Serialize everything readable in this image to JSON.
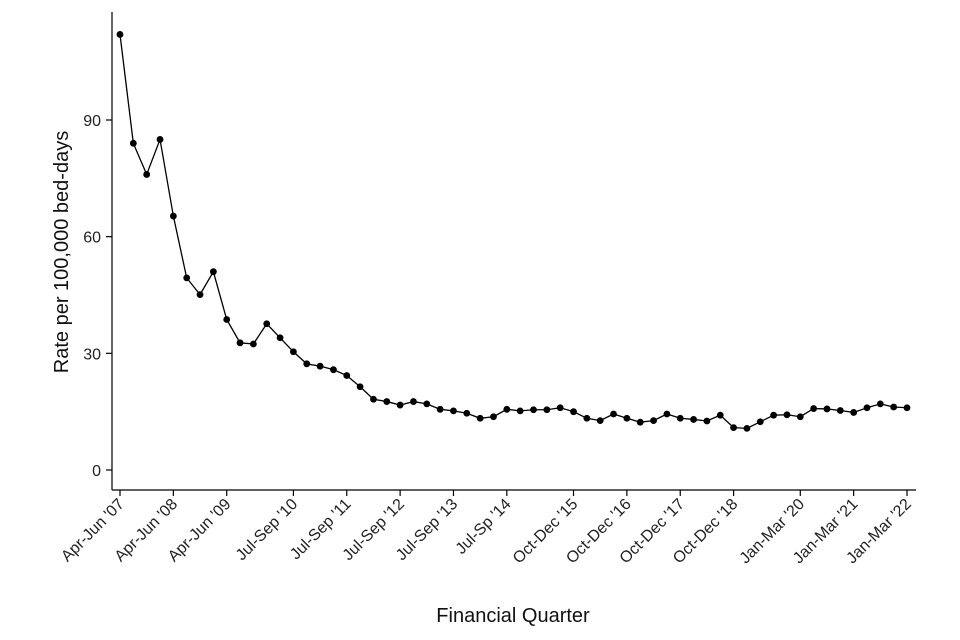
{
  "chart_data": {
    "type": "line",
    "xlabel": "Financial Quarter",
    "ylabel": "Rate per 100,000 bed-days",
    "ylim": [
      -5,
      117
    ],
    "y_ticks": [
      0,
      30,
      60,
      90
    ],
    "grid": false,
    "legend": "none",
    "colors": {
      "line": "#000000",
      "marker": "#000000",
      "axis": "#000000"
    },
    "x_tick_labels": [
      {
        "index": 0,
        "label": "Apr-Jun '07"
      },
      {
        "index": 4,
        "label": "Apr-Jun '08"
      },
      {
        "index": 8,
        "label": "Apr-Jun '09"
      },
      {
        "index": 13,
        "label": "Jul-Sep '10"
      },
      {
        "index": 17,
        "label": "Jul-Sep '11"
      },
      {
        "index": 21,
        "label": "Jul-Sep '12"
      },
      {
        "index": 25,
        "label": "Jul-Sep '13"
      },
      {
        "index": 29,
        "label": "Jul-Sp '14"
      },
      {
        "index": 34,
        "label": "Oct-Dec '15"
      },
      {
        "index": 38,
        "label": "Oct-Dec '16"
      },
      {
        "index": 42,
        "label": "Oct-Dec '17"
      },
      {
        "index": 46,
        "label": "Oct-Dec '18"
      },
      {
        "index": 51,
        "label": "Jan-Mar '20"
      },
      {
        "index": 55,
        "label": "Jan-Mar '21"
      },
      {
        "index": 59,
        "label": "Jan-Mar '22"
      }
    ],
    "series": [
      {
        "values": [
          112.0,
          84.0,
          76.0,
          85.0,
          65.3,
          49.4,
          45.1,
          51.0,
          38.7,
          32.7,
          32.4,
          37.6,
          34.0,
          30.4,
          27.3,
          26.7,
          25.8,
          24.3,
          21.4,
          18.2,
          17.6,
          16.7,
          17.6,
          17.0,
          15.6,
          15.2,
          14.6,
          13.3,
          13.7,
          15.6,
          15.2,
          15.5,
          15.5,
          16.0,
          15.0,
          13.3,
          12.7,
          14.4,
          13.3,
          12.3,
          12.7,
          14.4,
          13.3,
          13.0,
          12.6,
          14.1,
          10.9,
          10.7,
          12.4,
          14.1,
          14.2,
          13.7,
          15.8,
          15.7,
          15.3,
          14.8,
          16.0,
          17.0,
          16.2,
          16.0
        ]
      }
    ]
  }
}
